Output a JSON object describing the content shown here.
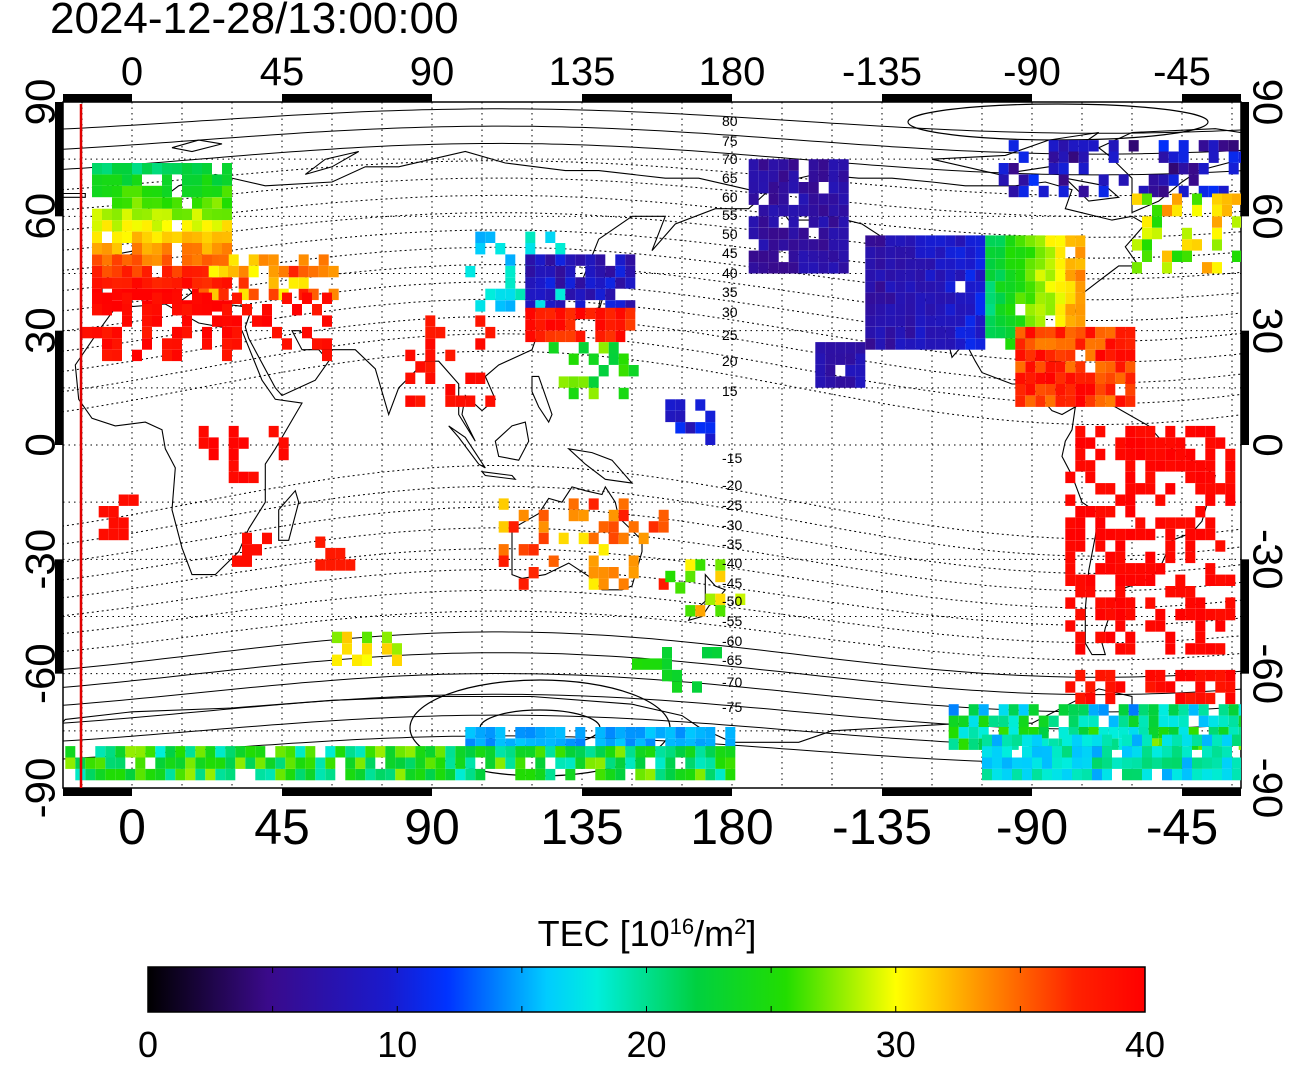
{
  "title": "2024-12-28/13:00:00",
  "map": {
    "top_lon_labels": [
      "0",
      "45",
      "90",
      "135",
      "180",
      "-135",
      "-90",
      "-45"
    ],
    "bottom_lon_labels": [
      "0",
      "45",
      "90",
      "135",
      "180",
      "-135",
      "-90",
      "-45"
    ],
    "left_lat_labels": [
      "90",
      "60",
      "30",
      "0",
      "-30",
      "-60",
      "-90"
    ],
    "right_lat_labels": [
      "90",
      "60",
      "30",
      "0",
      "-30",
      "-60",
      "-90"
    ],
    "contour_labels_north": [
      "80",
      "75",
      "70",
      "65",
      "60",
      "55",
      "50",
      "45",
      "40",
      "35",
      "30",
      "25",
      "20",
      "15"
    ],
    "contour_labels_south": [
      "-15",
      "-20",
      "-25",
      "-30",
      "-35",
      "-40",
      "-45",
      "-50",
      "-55",
      "-60",
      "-65",
      "-70",
      "-75"
    ],
    "terminator_color": "#e00000",
    "grid_style": "dotted",
    "colors": {
      "low": "#000000",
      "mid_blue": "#0000ff",
      "cyan": "#00ffff",
      "green": "#00cc00",
      "yellow": "#ffff00",
      "high": "#ff0000"
    }
  },
  "colorbar": {
    "title_prefix": "TEC  [10",
    "title_exp": "16",
    "title_mid": "/m",
    "title_exp2": "2",
    "title_suffix": "]",
    "min": 0,
    "max": 40,
    "tick_labels": [
      "0",
      "10",
      "20",
      "30",
      "40"
    ]
  }
}
